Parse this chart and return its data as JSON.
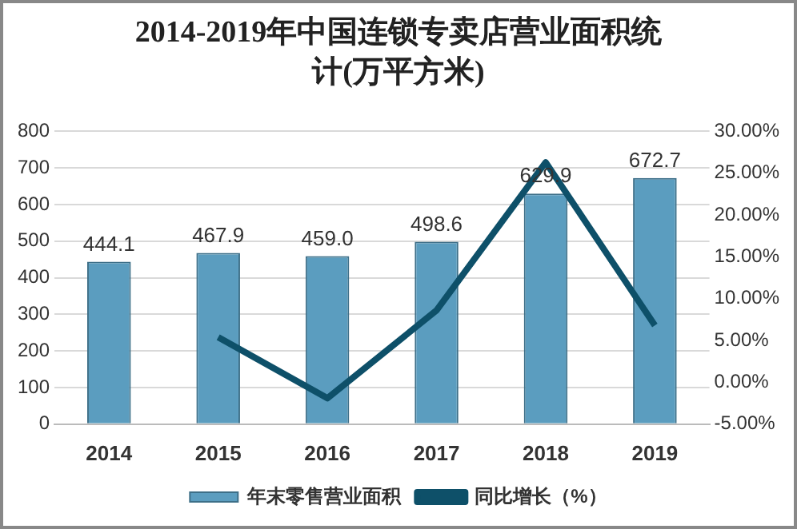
{
  "chart_data": {
    "type": "bar",
    "title": "2014-2019年中国连锁专卖店营业面积统计(万平方米)",
    "categories": [
      "2014",
      "2015",
      "2016",
      "2017",
      "2018",
      "2019"
    ],
    "series": [
      {
        "name": "年末零售营业面积",
        "color": "#5b9dbf",
        "values": [
          444.1,
          467.9,
          459.0,
          498.6,
          629.9,
          672.7
        ],
        "value_labels": [
          "444.1",
          "467.9",
          "459.0",
          "498.6",
          "629.9",
          "672.7"
        ]
      },
      {
        "name": "同比增长（%）",
        "type": "line",
        "axis": "y2",
        "color": "#0e5069",
        "values": [
          null,
          5.4,
          -1.9,
          8.6,
          26.3,
          6.8
        ]
      }
    ],
    "ylim": [
      0,
      800
    ],
    "yticks": [
      0,
      100,
      200,
      300,
      400,
      500,
      600,
      700,
      800
    ],
    "y2lim": [
      -5,
      30
    ],
    "y2ticks": [
      {
        "value": -5,
        "label": "-5.00%"
      },
      {
        "value": 0,
        "label": "0.00%"
      },
      {
        "value": 5,
        "label": "5.00%"
      },
      {
        "value": 10,
        "label": "10.00%"
      },
      {
        "value": 15,
        "label": "15.00%"
      },
      {
        "value": 20,
        "label": "20.00%"
      },
      {
        "value": 25,
        "label": "25.00%"
      },
      {
        "value": 30,
        "label": "30.00%"
      }
    ],
    "grid": "y",
    "legend": "bottom",
    "marker": "none"
  }
}
